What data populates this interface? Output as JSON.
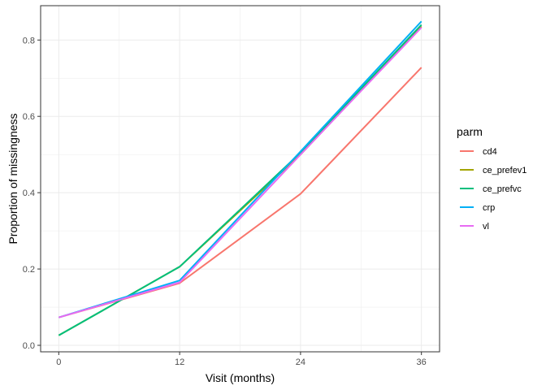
{
  "chart_data": {
    "type": "line",
    "title": "",
    "xlabel": "Visit (months)",
    "ylabel": "Proportion of missingness",
    "x": [
      0,
      12,
      24,
      36
    ],
    "xticks": [
      0,
      12,
      24,
      36
    ],
    "yticks": [
      0.0,
      0.2,
      0.4,
      0.6,
      0.8
    ],
    "ytick_labels": [
      "0.0",
      "0.2",
      "0.4",
      "0.6",
      "0.8"
    ],
    "xlim": [
      -1.8,
      37.8
    ],
    "ylim": [
      -0.017,
      0.89
    ],
    "grid": true,
    "legend": {
      "title": "parm",
      "position": "right"
    },
    "series": [
      {
        "name": "cd4",
        "color": "#F8766D",
        "values": [
          0.073,
          0.163,
          0.397,
          0.728
        ]
      },
      {
        "name": "ce_prefev1",
        "color": "#A3A500",
        "values": [
          0.026,
          0.206,
          0.5,
          0.836
        ]
      },
      {
        "name": "ce_prefvc",
        "color": "#00BF7D",
        "values": [
          0.026,
          0.206,
          0.505,
          0.84
        ]
      },
      {
        "name": "crp",
        "color": "#00B0F6",
        "values": [
          0.073,
          0.17,
          0.508,
          0.849
        ]
      },
      {
        "name": "vl",
        "color": "#E76BF3",
        "values": [
          0.073,
          0.165,
          0.5,
          0.833
        ]
      }
    ]
  }
}
